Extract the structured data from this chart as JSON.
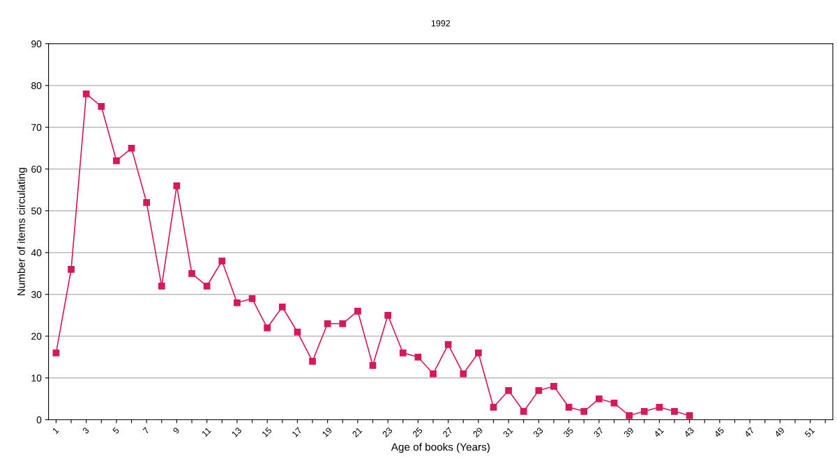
{
  "chart_data": {
    "type": "line",
    "title": "1992",
    "xlabel": "Age of books (Years)",
    "ylabel": "Number of items circulating",
    "categories": [
      "1",
      null,
      "3",
      null,
      "5",
      null,
      "7",
      null,
      "9",
      null,
      "11",
      null,
      "13",
      null,
      "15",
      null,
      "17",
      null,
      "19",
      null,
      "21",
      null,
      "23",
      null,
      "25",
      null,
      "27",
      null,
      "29",
      null,
      "31",
      null,
      "33",
      null,
      "35",
      null,
      "37",
      null,
      "39",
      null,
      "41",
      null,
      "43",
      null,
      "45",
      null,
      "47",
      null,
      "49",
      null,
      "51",
      null
    ],
    "series": [
      {
        "color": "#d6195c",
        "values": [
          16,
          36,
          78,
          75,
          62,
          65,
          52,
          32,
          56,
          35,
          32,
          38,
          28,
          29,
          22,
          27,
          21,
          14,
          23,
          23,
          26,
          13,
          25,
          16,
          15,
          11,
          18,
          11,
          16,
          3,
          7,
          2,
          7,
          8,
          3,
          2,
          5,
          4,
          1,
          2,
          3,
          2,
          1,
          null,
          null,
          null,
          null,
          null,
          null,
          null,
          null,
          null
        ]
      }
    ],
    "ylim": [
      0,
      90
    ],
    "yticks": [
      0,
      10,
      20,
      30,
      40,
      50,
      60,
      70,
      80,
      90
    ],
    "grid": "y",
    "marker": "square",
    "line_style": "solid"
  }
}
